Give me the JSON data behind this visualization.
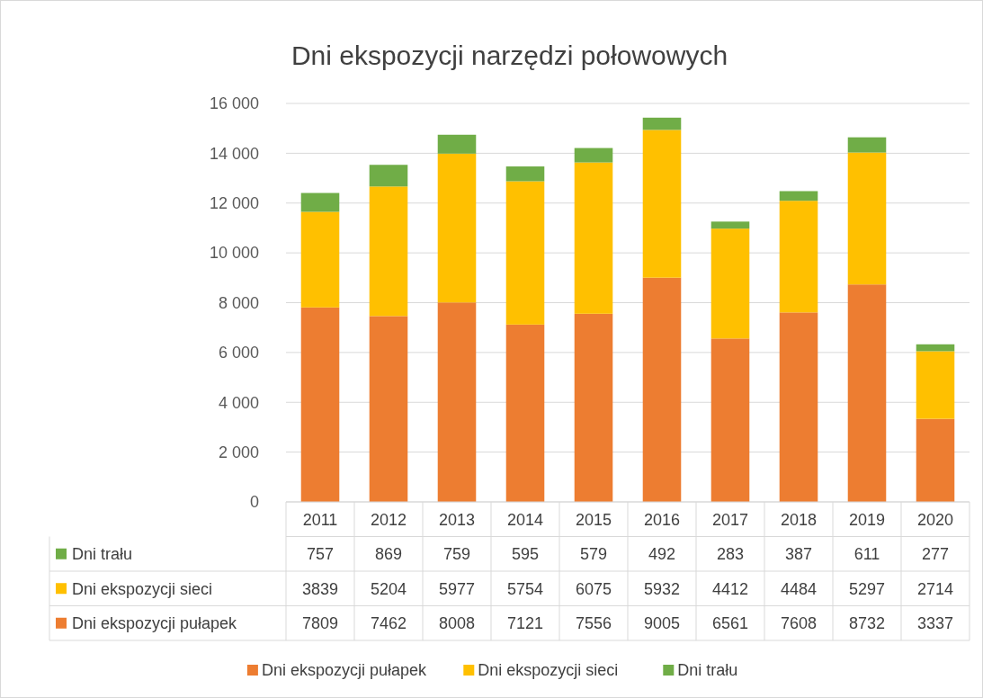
{
  "chart_data": {
    "type": "bar",
    "title": "Dni ekspozycji narzędzi połowowych",
    "stacked": true,
    "categories": [
      "2011",
      "2012",
      "2013",
      "2014",
      "2015",
      "2016",
      "2017",
      "2018",
      "2019",
      "2020"
    ],
    "series": [
      {
        "name": "Dni ekspozycji pułapek",
        "color": "#ed7d31",
        "values": [
          7809,
          7462,
          8008,
          7121,
          7556,
          9005,
          6561,
          7608,
          8732,
          3337
        ]
      },
      {
        "name": "Dni ekspozycji sieci",
        "color": "#ffc000",
        "values": [
          3839,
          5204,
          5977,
          5754,
          6075,
          5932,
          4412,
          4484,
          5297,
          2714
        ]
      },
      {
        "name": "Dni trału",
        "color": "#70ad47",
        "values": [
          757,
          869,
          759,
          595,
          579,
          492,
          283,
          387,
          611,
          277
        ]
      }
    ],
    "ylim": [
      0,
      16000
    ],
    "yticks": [
      {
        "value": 0,
        "label": "0"
      },
      {
        "value": 2000,
        "label": "2 000"
      },
      {
        "value": 4000,
        "label": "4 000"
      },
      {
        "value": 6000,
        "label": "6 000"
      },
      {
        "value": 8000,
        "label": "8 000"
      },
      {
        "value": 10000,
        "label": "10 000"
      },
      {
        "value": 12000,
        "label": "12 000"
      },
      {
        "value": 14000,
        "label": "14 000"
      },
      {
        "value": 16000,
        "label": "16 000"
      }
    ],
    "grid": "y",
    "legend": "bottom",
    "data_labels": true
  }
}
